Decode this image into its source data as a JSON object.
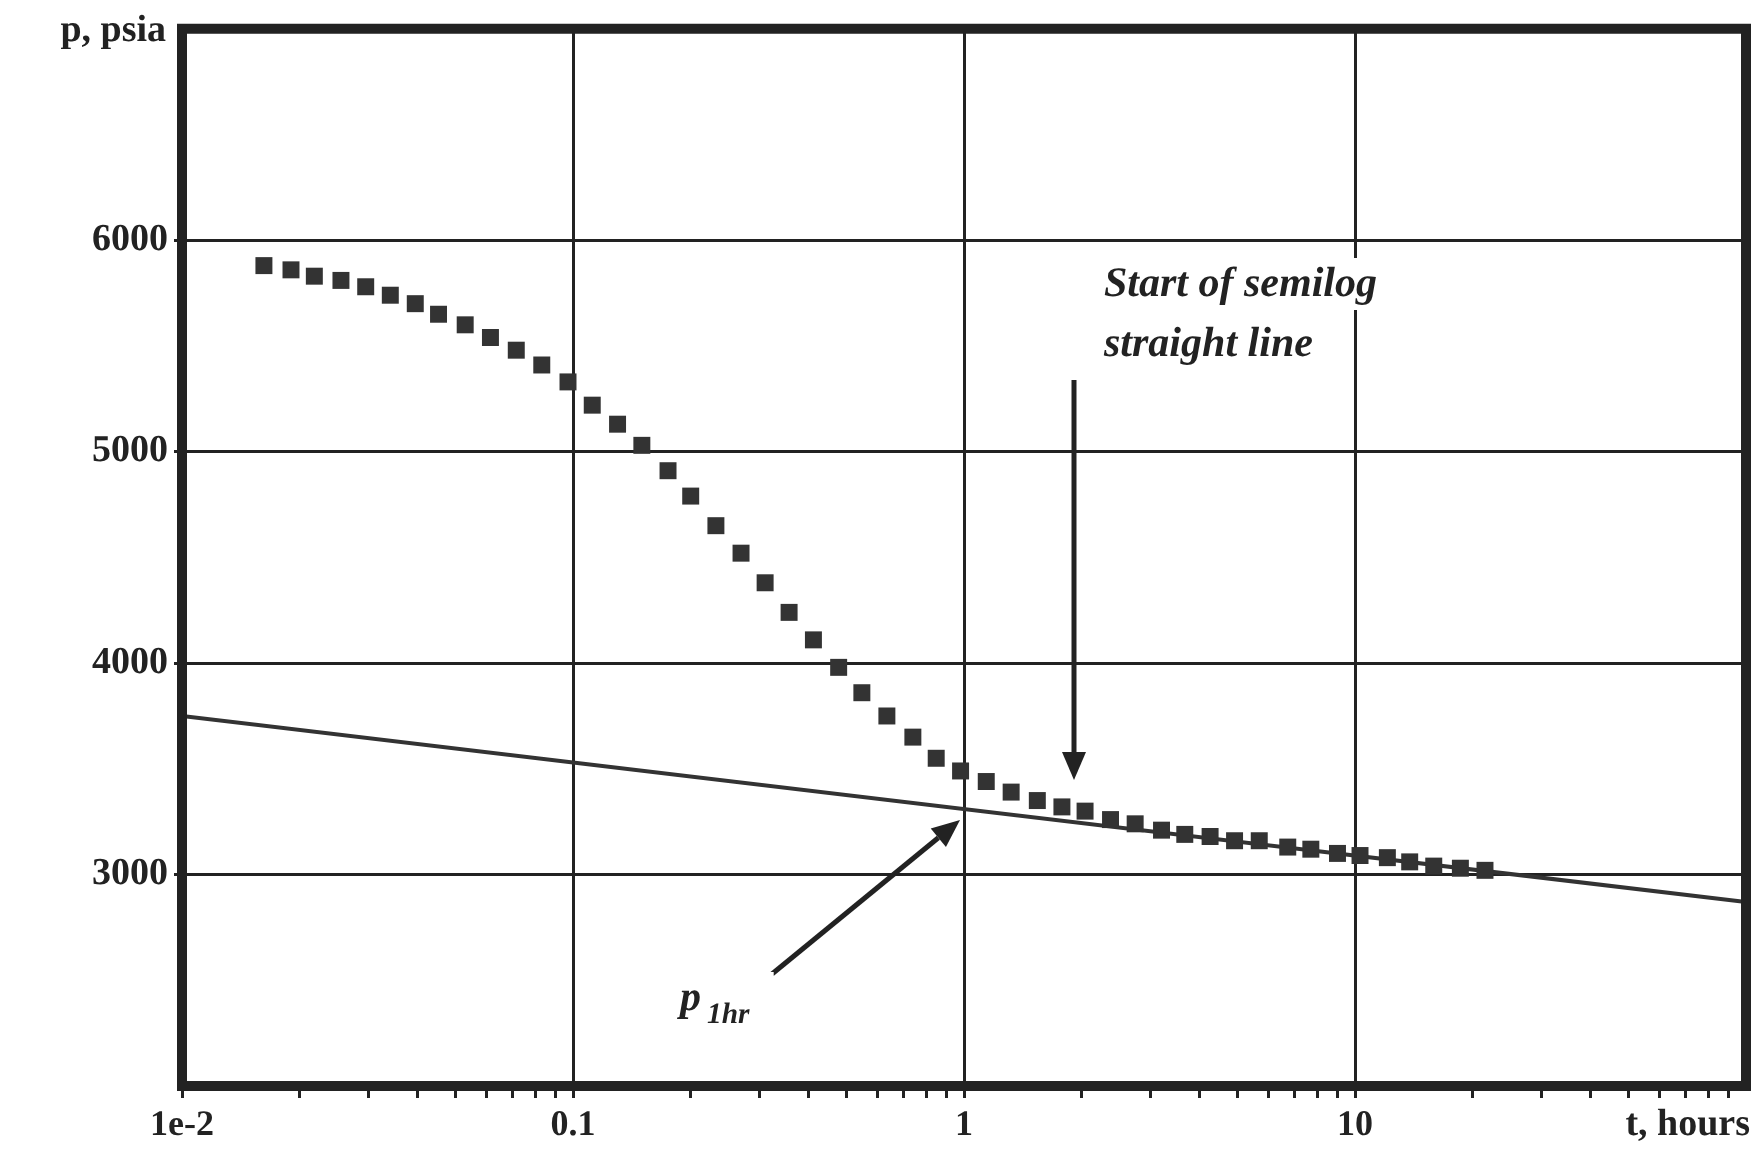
{
  "chart_data": {
    "type": "scatter",
    "xlabel": "t, hours",
    "ylabel": "p, psia",
    "log": "x",
    "xlim": [
      0.01,
      100
    ],
    "ylim": [
      2000,
      7000
    ],
    "xticks": [
      {
        "value": 0.01,
        "label": "1e-2"
      },
      {
        "value": 0.02,
        "label": null
      },
      {
        "value": 0.03,
        "label": null
      },
      {
        "value": 0.04,
        "label": null
      },
      {
        "value": 0.05,
        "label": null
      },
      {
        "value": 0.06,
        "label": null
      },
      {
        "value": 0.07,
        "label": null
      },
      {
        "value": 0.08,
        "label": null
      },
      {
        "value": 0.09,
        "label": null
      },
      0.1,
      {
        "value": 0.2,
        "label": null
      },
      {
        "value": 0.3,
        "label": null
      },
      {
        "value": 0.4,
        "label": null
      },
      {
        "value": 0.5,
        "label": null
      },
      {
        "value": 0.6,
        "label": null
      },
      {
        "value": 0.7,
        "label": null
      },
      {
        "value": 0.8,
        "label": null
      },
      {
        "value": 0.9,
        "label": null
      },
      1,
      {
        "value": 2,
        "label": null
      },
      {
        "value": 3,
        "label": null
      },
      {
        "value": 4,
        "label": null
      },
      {
        "value": 5,
        "label": null
      },
      {
        "value": 6,
        "label": null
      },
      {
        "value": 7,
        "label": null
      },
      {
        "value": 8,
        "label": null
      },
      {
        "value": 9,
        "label": null
      },
      10,
      {
        "value": 20,
        "label": null
      },
      {
        "value": 30,
        "label": null
      },
      {
        "value": 40,
        "label": null
      },
      {
        "value": 50,
        "label": null
      },
      {
        "value": 60,
        "label": null
      },
      {
        "value": 70,
        "label": null
      },
      {
        "value": 80,
        "label": null
      },
      {
        "value": 90,
        "label": null
      }
    ],
    "yticks": [
      3000,
      4000,
      5000,
      6000
    ],
    "grid": true,
    "legend": false,
    "series": [
      {
        "type": "scatter",
        "marker": "square",
        "color": "#333333",
        "x": [
          0.0162,
          0.019,
          0.0218,
          0.0255,
          0.0295,
          0.0341,
          0.0395,
          0.0453,
          0.053,
          0.0615,
          0.0716,
          0.0832,
          0.0971,
          0.112,
          0.13,
          0.15,
          0.175,
          0.2,
          0.232,
          0.269,
          0.31,
          0.357,
          0.412,
          0.478,
          0.548,
          0.635,
          0.74,
          0.849,
          0.98,
          1.14,
          1.32,
          1.54,
          1.78,
          2.04,
          2.37,
          2.74,
          3.2,
          3.67,
          4.26,
          4.92,
          5.69,
          6.73,
          7.71,
          9.02,
          10.3,
          12.1,
          13.8,
          15.9,
          18.6,
          21.5
        ],
        "values": [
          5880,
          5860,
          5830,
          5810,
          5780,
          5740,
          5700,
          5650,
          5600,
          5540,
          5480,
          5410,
          5330,
          5220,
          5130,
          5030,
          4910,
          4790,
          4650,
          4520,
          4380,
          4240,
          4110,
          3980,
          3860,
          3750,
          3650,
          3550,
          3490,
          3440,
          3390,
          3350,
          3320,
          3300,
          3260,
          3240,
          3210,
          3190,
          3180,
          3160,
          3160,
          3130,
          3120,
          3100,
          3090,
          3080,
          3060,
          3040,
          3030,
          3020
        ]
      },
      {
        "type": "line",
        "marker": "none",
        "line_style": "solid",
        "color": "#333333",
        "x": [
          0.01,
          100
        ],
        "values": [
          3750,
          2870
        ]
      }
    ],
    "annotations": [
      "Start of semilog\nstraight line",
      "p$_{1hr}$"
    ]
  }
}
